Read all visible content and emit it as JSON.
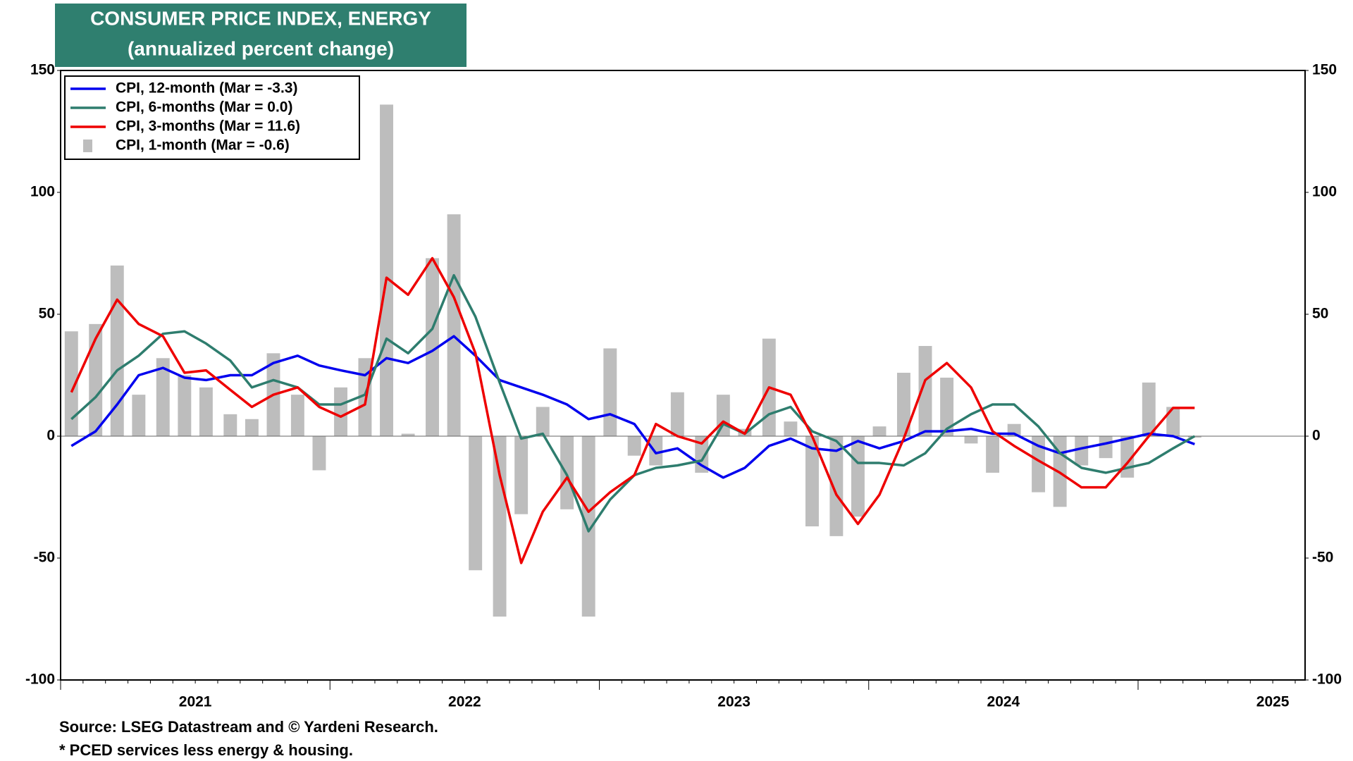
{
  "chart_data": {
    "type": "bar_line",
    "title": "CONSUMER PRICE INDEX, ENERGY",
    "subtitle": "(annualized percent change)",
    "notes": [
      "Source: LSEG Datastream and © Yardeni Research.",
      "* PCED services less energy & housing."
    ],
    "x": [
      2021.04,
      2021.13,
      2021.21,
      2021.29,
      2021.38,
      2021.46,
      2021.54,
      2021.63,
      2021.71,
      2021.79,
      2021.88,
      2021.96,
      2022.04,
      2022.13,
      2022.21,
      2022.29,
      2022.38,
      2022.46,
      2022.54,
      2022.63,
      2022.71,
      2022.79,
      2022.88,
      2022.96,
      2023.04,
      2023.13,
      2023.21,
      2023.29,
      2023.38,
      2023.46,
      2023.54,
      2023.63,
      2023.71,
      2023.79,
      2023.88,
      2023.96,
      2024.04,
      2024.13,
      2024.21,
      2024.29,
      2024.38,
      2024.46,
      2024.54,
      2024.63,
      2024.71,
      2024.79,
      2024.88,
      2024.96,
      2025.04,
      2025.13,
      2025.21
    ],
    "xlim": [
      2021.0,
      2025.62
    ],
    "xticks": [
      {
        "value": 2021.5,
        "label": "2021"
      },
      {
        "value": 2022.5,
        "label": "2022"
      },
      {
        "value": 2023.5,
        "label": "2023"
      },
      {
        "value": 2024.5,
        "label": "2024"
      },
      {
        "value": 2025.5,
        "label": "2025"
      }
    ],
    "ylim": [
      -100,
      150
    ],
    "yticks": [
      -100,
      -50,
      0,
      50,
      100,
      150
    ],
    "legend": "upper left",
    "series": [
      {
        "name": "CPI, 12-month (Mar = -3.3)",
        "kind": "line",
        "color": "#0000ee",
        "values": [
          -4,
          2,
          13,
          25,
          28,
          24,
          23,
          25,
          25,
          30,
          33,
          29,
          27,
          25,
          32,
          30,
          35,
          41,
          33,
          23,
          20,
          17,
          13,
          7,
          9,
          5,
          -7,
          -5,
          -12,
          -17,
          -13,
          -4,
          -1,
          -5,
          -6,
          -2,
          -5,
          -2,
          2,
          2,
          3,
          1,
          1,
          -4,
          -7,
          -5,
          -3,
          -1,
          1,
          0,
          -3.3
        ]
      },
      {
        "name": "CPI, 6-months (Mar = 0.0)",
        "kind": "line",
        "color": "#2e7d6e",
        "values": [
          7,
          16,
          27,
          33,
          42,
          43,
          38,
          31,
          20,
          23,
          20,
          13,
          13,
          17,
          40,
          34,
          44,
          66,
          49,
          22,
          -1,
          1,
          -16,
          -39,
          -26,
          -16,
          -13,
          -12,
          -10,
          5,
          1,
          9,
          12,
          2,
          -2,
          -11,
          -11,
          -12,
          -7,
          3,
          9,
          13,
          13,
          4,
          -7,
          -13,
          -15,
          -13,
          -11,
          -5,
          0.0
        ]
      },
      {
        "name": "CPI, 3-months (Mar = 11.6)",
        "kind": "line",
        "color": "#ee0000",
        "values": [
          18,
          40,
          56,
          46,
          41,
          26,
          27,
          19,
          12,
          17,
          20,
          12,
          8,
          13,
          65,
          58,
          73,
          57,
          34,
          -16,
          -52,
          -31,
          -17,
          -31,
          -23,
          -16,
          5,
          0,
          -3,
          6,
          1,
          20,
          17,
          0,
          -24,
          -36,
          -24,
          -1,
          23,
          30,
          20,
          2,
          -4,
          -10,
          -15,
          -21,
          -21,
          -11,
          0,
          11.6,
          11.6
        ]
      },
      {
        "name": "CPI, 1-month (Mar = -0.6)",
        "kind": "bar",
        "color": "#bdbdbd",
        "values": [
          43,
          46,
          70,
          17,
          32,
          25,
          20,
          9,
          7,
          34,
          17,
          -14,
          20,
          32,
          136,
          1,
          73,
          91,
          -55,
          -74,
          -32,
          12,
          -30,
          -74,
          36,
          -8,
          -12,
          18,
          -15,
          17,
          3,
          40,
          6,
          -37,
          -41,
          -33,
          4,
          26,
          37,
          24,
          -3,
          -15,
          5,
          -23,
          -29,
          -12,
          -9,
          -17,
          22,
          12,
          -0.6
        ]
      }
    ]
  }
}
